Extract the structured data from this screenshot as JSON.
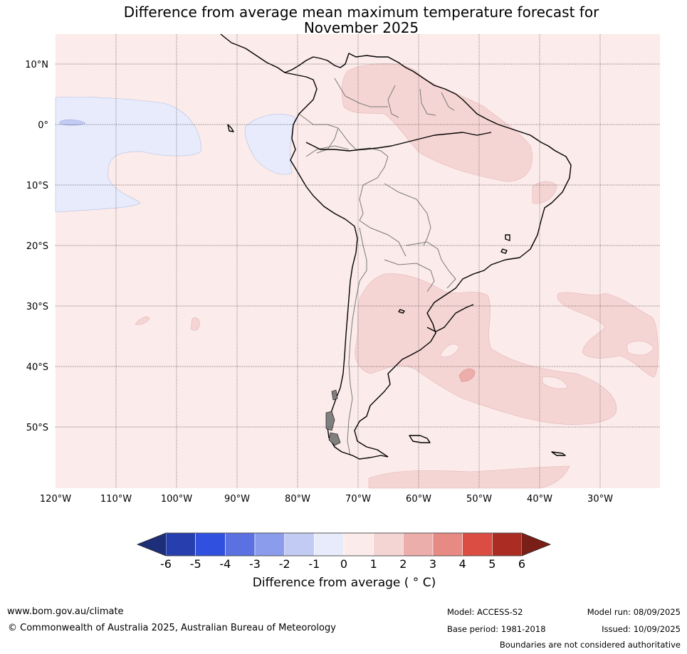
{
  "title_line1": "Difference from average mean maximum temperature forecast for",
  "title_line2": "November 2025",
  "lat_labels": [
    "10°N",
    "0°",
    "10°S",
    "20°S",
    "30°S",
    "40°S",
    "50°S"
  ],
  "lon_labels": [
    "120°W",
    "110°W",
    "100°W",
    "90°W",
    "80°W",
    "70°W",
    "60°W",
    "50°W",
    "40°W",
    "30°W"
  ],
  "colorbar": {
    "ticks": [
      "-6",
      "-5",
      "-4",
      "-3",
      "-2",
      "-1",
      "0",
      "1",
      "2",
      "3",
      "4",
      "5",
      "6"
    ],
    "colors": [
      "#273fae",
      "#3050e0",
      "#5b71e2",
      "#8b9cec",
      "#c2cbf3",
      "#e7ebfb",
      "#fbebea",
      "#f5d5d4",
      "#ecaeaa",
      "#e68a83",
      "#db4d42",
      "#aa2c22"
    ],
    "under_color": "#1e2f7a",
    "over_color": "#7a1e18",
    "label": "Difference from average ( ° C)"
  },
  "footer": {
    "website": "www.bom.gov.au/climate",
    "copyright": "© Commonwealth of Australia 2025, Australian Bureau of Meteorology",
    "model": "Model: ACCESS-S2",
    "base_period": "Base period: 1981-2018",
    "model_run": "Model run: 08/09/2025",
    "issued": "Issued: 10/09/2025",
    "disclaimer": "Boundaries are not considered authoritative"
  }
}
